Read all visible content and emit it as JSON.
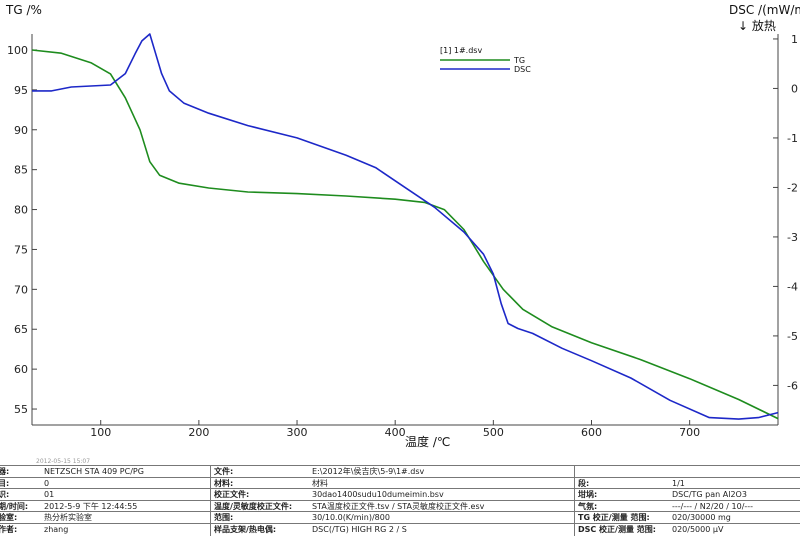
{
  "chart_data": {
    "type": "line",
    "left_axis_title": "TG /%",
    "right_axis_title": "DSC /(mW/m",
    "right_axis_subtitle": "↓ 放热",
    "xlabel": "温度 /℃",
    "xlim": [
      30,
      790
    ],
    "ylim_left": [
      53,
      102
    ],
    "ylim_right": [
      -6.8,
      1.1
    ],
    "x_ticks": [
      100,
      200,
      300,
      400,
      500,
      600,
      700
    ],
    "y_left_ticks": [
      55,
      60,
      65,
      70,
      75,
      80,
      85,
      90,
      95,
      100
    ],
    "y_right_ticks": [
      -6,
      -5,
      -4,
      -3,
      -2,
      -1,
      0,
      1
    ],
    "legend_file": "[1] 1#.dsv",
    "legend_position": "top-center",
    "series": [
      {
        "name": "TG",
        "axis": "left",
        "color": "#1e8c1e",
        "x": [
          30,
          60,
          90,
          110,
          125,
          140,
          150,
          160,
          180,
          210,
          250,
          300,
          350,
          400,
          430,
          450,
          470,
          490,
          510,
          530,
          560,
          600,
          650,
          700,
          750,
          790
        ],
        "y": [
          100,
          99.6,
          98.4,
          97,
          94,
          90,
          86,
          84.3,
          83.3,
          82.7,
          82.2,
          82,
          81.7,
          81.3,
          80.9,
          80,
          77.5,
          73.5,
          70,
          67.5,
          65.3,
          63.3,
          61.2,
          58.8,
          56.2,
          53.8
        ]
      },
      {
        "name": "DSC",
        "axis": "right",
        "color": "#1d28c8",
        "x": [
          30,
          50,
          70,
          90,
          110,
          125,
          135,
          142,
          150,
          156,
          162,
          170,
          185,
          210,
          250,
          300,
          350,
          380,
          410,
          440,
          470,
          490,
          500,
          508,
          515,
          525,
          540,
          570,
          600,
          640,
          680,
          720,
          750,
          770,
          790
        ],
        "y": [
          -0.05,
          -0.05,
          0.03,
          0.05,
          0.07,
          0.3,
          0.7,
          0.96,
          1.1,
          0.7,
          0.3,
          -0.05,
          -0.3,
          -0.5,
          -0.75,
          -1.0,
          -1.35,
          -1.6,
          -2.0,
          -2.4,
          -2.9,
          -3.35,
          -3.75,
          -4.35,
          -4.75,
          -4.85,
          -4.95,
          -5.25,
          -5.5,
          -5.85,
          -6.3,
          -6.65,
          -6.68,
          -6.65,
          -6.55
        ]
      }
    ]
  },
  "meta": {
    "topline": "2012-05-15 15:07",
    "rows": [
      {
        "l1": "仪器:",
        "v1": "NETZSCH STA 409 PC/PG",
        "l2": "文件:",
        "v2": "E:\\2012年\\侯吉庆\\5-9\\1#.dsv",
        "l3": "",
        "v3": ""
      },
      {
        "l1": "项目:",
        "v1": "0",
        "l2": "材料:",
        "v2": "材料",
        "l3": "段:",
        "v3": "1/1"
      },
      {
        "l1": "标识:",
        "v1": "01",
        "l2": "校正文件:",
        "v2": "30dao1400sudu10dumeimin.bsv",
        "l3": "坩埚:",
        "v3": "DSC/TG pan Al2O3"
      },
      {
        "l1": "日期/时间:",
        "v1": "2012-5-9 下午 12:44:55",
        "l2": "温度/灵敏度校正文件:",
        "v2": "STA温度校正文件.tsv / STA灵敏度校正文件.esv",
        "l3": "气氛:",
        "v3": "---/--- / N2/20 / 10/---"
      },
      {
        "l1": "实验室:",
        "v1": "热分析实验室",
        "l2": "范围:",
        "v2": "30/10.0(K/min)/800",
        "l3": "TG 校正/测量 范围:",
        "v3": "020/30000 mg"
      },
      {
        "l1": "操作者:",
        "v1": "zhang",
        "l2": "样品支架/热电偶:",
        "v2": "DSC(/TG) HIGH RG 2 / S",
        "l3": "DSC 校正/测量 范围:",
        "v3": "020/5000 μV"
      }
    ]
  }
}
